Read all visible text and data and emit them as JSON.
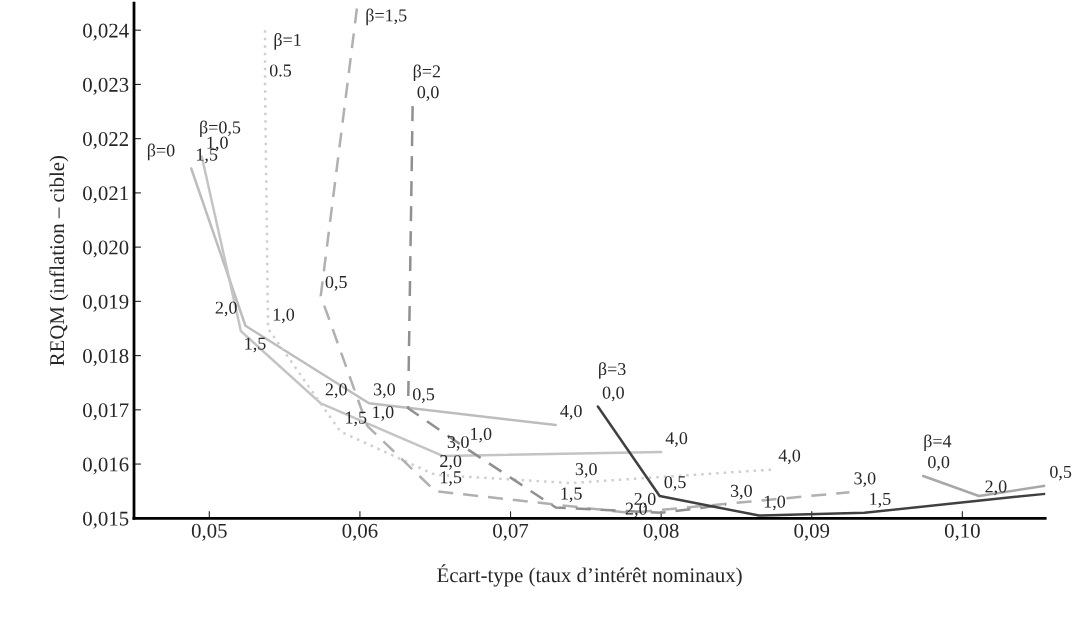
{
  "chart_data": {
    "type": "line",
    "xlabel": "Écart-type (taux d’intérêt nominaux)",
    "ylabel": "REQM (inflation – cible)",
    "xlim": [
      0.045,
      0.1055
    ],
    "ylim": [
      0.015,
      0.0245
    ],
    "xticks": [
      {
        "value": 0.05,
        "label": "0,05"
      },
      {
        "value": 0.06,
        "label": "0,06"
      },
      {
        "value": 0.07,
        "label": "0,07"
      },
      {
        "value": 0.08,
        "label": "0,08"
      },
      {
        "value": 0.09,
        "label": "0,09"
      },
      {
        "value": 0.1,
        "label": "0,10"
      }
    ],
    "yticks": [
      {
        "value": 0.015,
        "label": "0,015"
      },
      {
        "value": 0.016,
        "label": "0,016"
      },
      {
        "value": 0.017,
        "label": "0,017"
      },
      {
        "value": 0.018,
        "label": "0,018"
      },
      {
        "value": 0.019,
        "label": "0,019"
      },
      {
        "value": 0.02,
        "label": "0,020"
      },
      {
        "value": 0.021,
        "label": "0,021"
      },
      {
        "value": 0.022,
        "label": "0,022"
      },
      {
        "value": 0.023,
        "label": "0,023"
      },
      {
        "value": 0.024,
        "label": "0,024"
      }
    ],
    "grid": false,
    "legend": false,
    "marker": "none",
    "series": [
      {
        "name": "β=0",
        "color": "#bdbdbd",
        "line_style": "solid",
        "x": [
          0.0488,
          0.0524,
          0.0606,
          0.073
        ],
        "values": [
          0.02145,
          0.01855,
          0.01712,
          0.01672
        ]
      },
      {
        "name": "β=0,5",
        "color": "#c4c4c4",
        "line_style": "solid",
        "x": [
          0.0495,
          0.0521,
          0.0574,
          0.0655,
          0.08
        ],
        "values": [
          0.02167,
          0.01845,
          0.01712,
          0.01615,
          0.01622
        ]
      },
      {
        "name": "β=1",
        "color": "#cfcfcf",
        "line_style": "dotted",
        "x": [
          0.0537,
          0.0537,
          0.0539,
          0.0587,
          0.065,
          0.074,
          0.0875
        ],
        "values": [
          0.024,
          0.023,
          0.0185,
          0.0166,
          0.0158,
          0.01565,
          0.0159
        ]
      },
      {
        "name": "β=1,5",
        "color": "#b0b0b0",
        "line_style": "dashed",
        "x": [
          0.0598,
          0.0574,
          0.0605,
          0.065,
          0.0779,
          0.0925
        ],
        "values": [
          0.0244,
          0.0191,
          0.0167,
          0.0155,
          0.0151,
          0.01548
        ]
      },
      {
        "name": "β=2",
        "color": "#909090",
        "line_style": "dashed",
        "x": [
          0.0635,
          0.0632,
          0.067,
          0.073,
          0.08,
          0.0843
        ],
        "values": [
          0.0226,
          0.01703,
          0.0163,
          0.0152,
          0.0151,
          0.01525
        ]
      },
      {
        "name": "β=3",
        "color": "#404040",
        "line_style": "solid",
        "x": [
          0.0758,
          0.0799,
          0.0865,
          0.0935,
          0.1012,
          0.1055
        ],
        "values": [
          0.01706,
          0.01541,
          0.01505,
          0.0151,
          0.01533,
          0.01545
        ]
      },
      {
        "name": "β=4",
        "color": "#a8a8a8",
        "line_style": "solid",
        "x": [
          0.0974,
          0.1011,
          0.1055
        ],
        "values": [
          0.01578,
          0.01541,
          0.0156
        ]
      }
    ],
    "annotations": [
      {
        "text": "1,5",
        "x": 0.0488,
        "y": 0.02145
      },
      {
        "text": "2,0",
        "x": 0.0524,
        "y": 0.01855
      },
      {
        "text": "3,0",
        "x": 0.0606,
        "y": 0.01712
      },
      {
        "text": "4,0",
        "x": 0.073,
        "y": 0.01672
      },
      {
        "text": "1,0",
        "x": 0.0495,
        "y": 0.02167
      },
      {
        "text": "1,5",
        "x": 0.0521,
        "y": 0.01845
      },
      {
        "text": "2,0",
        "x": 0.0574,
        "y": 0.01712
      },
      {
        "text": "3,0",
        "x": 0.0655,
        "y": 0.01615
      },
      {
        "text": "4,0",
        "x": 0.08,
        "y": 0.01622
      },
      {
        "text": "0.5",
        "x": 0.0537,
        "y": 0.023
      },
      {
        "text": "1,0",
        "x": 0.0539,
        "y": 0.0185
      },
      {
        "text": "1,5",
        "x": 0.0587,
        "y": 0.0166
      },
      {
        "text": "2,0",
        "x": 0.065,
        "y": 0.0158
      },
      {
        "text": "3,0",
        "x": 0.074,
        "y": 0.01565
      },
      {
        "text": "4,0",
        "x": 0.0875,
        "y": 0.0159
      },
      {
        "text": "0,5",
        "x": 0.0574,
        "y": 0.0191
      },
      {
        "text": "1,0",
        "x": 0.0605,
        "y": 0.0167
      },
      {
        "text": "1,5",
        "x": 0.065,
        "y": 0.0155
      },
      {
        "text": "2,0",
        "x": 0.0779,
        "y": 0.0151
      },
      {
        "text": "3,0",
        "x": 0.0925,
        "y": 0.01548
      },
      {
        "text": "0,0",
        "x": 0.0635,
        "y": 0.0226
      },
      {
        "text": "0,5",
        "x": 0.0632,
        "y": 0.01703
      },
      {
        "text": "1,0",
        "x": 0.067,
        "y": 0.0163
      },
      {
        "text": "1,5",
        "x": 0.073,
        "y": 0.0152
      },
      {
        "text": "2,0",
        "x": 0.08,
        "y": 0.0151
      },
      {
        "text": "3,0",
        "x": 0.0843,
        "y": 0.01525
      },
      {
        "text": "0,0",
        "x": 0.0758,
        "y": 0.01706
      },
      {
        "text": "0,5",
        "x": 0.0799,
        "y": 0.01541
      },
      {
        "text": "1,0",
        "x": 0.0865,
        "y": 0.01505
      },
      {
        "text": "1,5",
        "x": 0.0935,
        "y": 0.0151
      },
      {
        "text": "2,0",
        "x": 0.1012,
        "y": 0.01533
      },
      {
        "text": "0,0",
        "x": 0.0974,
        "y": 0.01578
      },
      {
        "text": "0,5",
        "x": 0.1055,
        "y": 0.0156
      }
    ]
  }
}
